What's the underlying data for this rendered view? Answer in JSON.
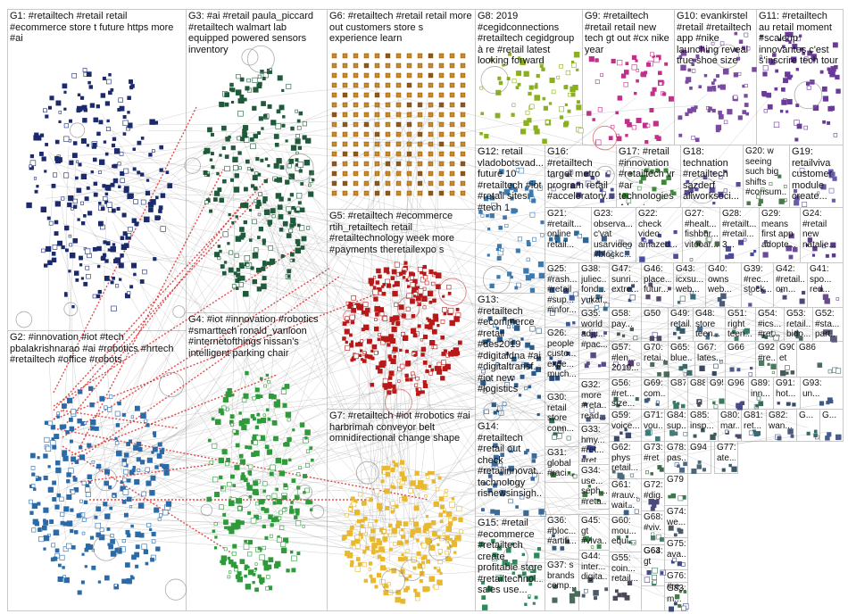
{
  "groups": [
    {
      "id": "G1",
      "label": "G1: #retailtech #retail retail #ecommerce store t future https more #ai",
      "color": "#1a2a6c"
    },
    {
      "id": "G2",
      "label": "G2: #innovation #iot #tech pbalakrishnarao #ai #robotics #hrtech #retailtech #office #robots",
      "color": "#2a6aa8"
    },
    {
      "id": "G3",
      "label": "G3: #ai #retail paula_piccard #retailtech walmart lab equipped powered sensors inventory",
      "color": "#1f5a3a"
    },
    {
      "id": "G4",
      "label": "G4: #iot #innovation #robotics #smarttech ronald_vanloon #internetofthings nissan's intelligent parking chair",
      "color": "#2e9a3a"
    },
    {
      "id": "G5",
      "label": "G5: #retailtech #ecommerce rtih_retailtech retail #retailtechnology week more #payments theretailexpo s",
      "color": "#b81818"
    },
    {
      "id": "G6",
      "label": "G6: #retailtech #retail retail more out customers store s experience learn",
      "color": "#c88a2a"
    },
    {
      "id": "G7",
      "label": "G7: #retailtech #iot #robotics #ai harbrimah conveyor belt omnidirectional change shape",
      "color": "#e8b830"
    },
    {
      "id": "G8",
      "label": "G8: 2019 #cegidconnections #retailtech cegidgroup à re #retail latest looking forward",
      "color": "#8ab020"
    },
    {
      "id": "G9",
      "label": "G9: #retailtech #retail retail new tech gt out #cx nike year",
      "color": "#c0308a"
    },
    {
      "id": "G10",
      "label": "G10: evankirstel #retail #retailtech app #nike launching reveal true shoe size",
      "color": "#7a4aa0"
    },
    {
      "id": "G11",
      "label": "G11: #retailtech au retail moment #scaleup innovantes c'est s'inscrire tech tour",
      "color": "#6a3a9a"
    },
    {
      "id": "G12",
      "label": "G12: retail vladobotsvad... future 10 #retailtech #iot #retail sites #tech 1",
      "color": "#3a7ab0"
    },
    {
      "id": "G13",
      "label": "G13: #retailtech #ecommerce #retail #des2019 #digitaldna #ai #digitaltransf... #iot new #logistics",
      "color": "#2a5a8a"
    },
    {
      "id": "G14",
      "label": "G14: #retailtech #retail out check #retailinnovat... technology risnewsinsigh...",
      "color": "#3a6a9a"
    },
    {
      "id": "G15",
      "label": "G15: #retail #ecommerce #retailtech create profitable store #retailtechnol... sales use...",
      "color": "#2a8a5a"
    },
    {
      "id": "G16",
      "label": "G16: #retailtech target metro program retail #acceleratorv...",
      "color": "#4a4a8a"
    },
    {
      "id": "G17",
      "label": "G17: #retail #innovation #retailtech vr #ar technologies 4 best...",
      "color": "#3a8a3a"
    },
    {
      "id": "G18",
      "label": "G18: technation #retailtech sazderf allworksoci...",
      "color": "#5a4a9a"
    },
    {
      "id": "G19",
      "label": "G19: retailviva customer module create...",
      "color": "#6a5aaa"
    },
    {
      "id": "G20",
      "label": "G20: w seeing such big shifts #consum...",
      "color": "#4a7a4a"
    },
    {
      "id": "G21",
      "label": "G21: #retailt... online retail...",
      "color": "#2a6a9a"
    },
    {
      "id": "G22",
      "label": "G22: check video amazed...",
      "color": "#4a4aa0"
    },
    {
      "id": "G23",
      "label": "G23: observa... c'vat usarvideo #blockc...",
      "color": "#3a5a8a"
    },
    {
      "id": "G24",
      "label": "G24: #retail new natalie...",
      "color": "#5a3a8a"
    },
    {
      "id": "G25",
      "label": "G25: #rash... #retail #sup... #infor...",
      "color": "#3a5a9a"
    },
    {
      "id": "G26",
      "label": "G26: people custo... expe... much...",
      "color": "#2a4a7a"
    },
    {
      "id": "G27",
      "label": "G27: #healt... fishbur... vitooar...",
      "color": "#4a6a4a"
    },
    {
      "id": "G28",
      "label": "G28: #retailt... #retail... 3...",
      "color": "#4a4a9a"
    },
    {
      "id": "G29",
      "label": "G29: means first app adopte...",
      "color": "#6a4a9a"
    },
    {
      "id": "G30",
      "label": "G30: retail store conn...",
      "color": "#2a6a5a"
    },
    {
      "id": "G31",
      "label": "G31: global #raci... appar... mark...",
      "color": "#3a6a3a"
    },
    {
      "id": "G32",
      "label": "G32: more #reta... read...",
      "color": "#4a5a8a"
    },
    {
      "id": "G33",
      "label": "G33: hmy... #ret... #ret...",
      "color": "#3a4a9a"
    },
    {
      "id": "G34",
      "label": "G34: use... seph... #reta...",
      "color": "#3a7a3a"
    },
    {
      "id": "G35",
      "label": "G35: world adju... #pac...",
      "color": "#5a4a8a"
    },
    {
      "id": "G36",
      "label": "G36: #bloc... #artifi...",
      "color": "#3a5a7a"
    },
    {
      "id": "G37",
      "label": "G37: s brands comp...",
      "color": "#4a6a5a"
    },
    {
      "id": "G38",
      "label": "G38: juliec... fond... yukaf...",
      "color": "#3a6a8a"
    },
    {
      "id": "G39",
      "label": "G39: #rec... stock...",
      "color": "#5a5a9a"
    },
    {
      "id": "G40",
      "label": "G40: owns web...",
      "color": "#4a5a7a"
    },
    {
      "id": "G41",
      "label": "G41: spo... red...",
      "color": "#6a4a8a"
    },
    {
      "id": "G42",
      "label": "G42: #retail... om...",
      "color": "#4a4a7a"
    },
    {
      "id": "G43",
      "label": "G43: icxsu... web...",
      "color": "#3a6a7a"
    },
    {
      "id": "G44",
      "label": "G44: inter... digita...",
      "color": "#4a5a6a"
    },
    {
      "id": "G45",
      "label": "G45: gt #viva...",
      "color": "#3a8a4a"
    },
    {
      "id": "G46",
      "label": "G46: place... futur...",
      "color": "#5a4a6a"
    },
    {
      "id": "G47",
      "label": "G47: sunri... extre...",
      "color": "#3a4a7a"
    },
    {
      "id": "G48",
      "label": "G48: store teen...",
      "color": "#4a6a8a"
    },
    {
      "id": "G49",
      "label": "G49: retail...",
      "color": "#3a5a6a"
    },
    {
      "id": "G50",
      "label": "G50",
      "color": "#4a4a6a"
    },
    {
      "id": "G51",
      "label": "G51: right teen...",
      "color": "#3a7a6a"
    },
    {
      "id": "G52",
      "label": "G52: #sta... part...",
      "color": "#5a5a7a"
    },
    {
      "id": "G53",
      "label": "G53: retail... bido...",
      "color": "#4a6a6a"
    },
    {
      "id": "G54",
      "label": "G54: #ics... #ret...",
      "color": "#3a5a5a"
    },
    {
      "id": "G55",
      "label": "G55: coin... retail...",
      "color": "#4a4a5a"
    },
    {
      "id": "G56",
      "label": "G56: #ret... size...",
      "color": "#3a6a5a"
    },
    {
      "id": "G57",
      "label": "G57: #len... 2019...",
      "color": "#5a3a7a"
    },
    {
      "id": "G58",
      "label": "G58: pay...",
      "color": "#4a5a5a"
    },
    {
      "id": "G59",
      "label": "G59: voice...",
      "color": "#3a4a6a"
    },
    {
      "id": "G60",
      "label": "G60: mou... equi...",
      "color": "#4a7a5a"
    },
    {
      "id": "G61",
      "label": "G61: #rauv... wait...",
      "color": "#3a5a8a"
    },
    {
      "id": "G62",
      "label": "G62: phys retail...",
      "color": "#4a6a7a"
    },
    {
      "id": "G63",
      "label": "G63: gt",
      "color": "#3a7a5a"
    },
    {
      "id": "G64",
      "label": "G64",
      "color": "#4a4a8a"
    },
    {
      "id": "G65",
      "label": "G65: blue...",
      "color": "#3a6a6a"
    },
    {
      "id": "G66",
      "label": "G66",
      "color": "#4a5a8a"
    },
    {
      "id": "G67",
      "label": "G67: lates...",
      "color": "#3a4a5a"
    },
    {
      "id": "G68",
      "label": "G68: #viv...",
      "color": "#4a7a6a"
    },
    {
      "id": "G69",
      "label": "G69: com...",
      "color": "#3a5a7a"
    },
    {
      "id": "G70",
      "label": "G70: retai...",
      "color": "#4a6a5a"
    },
    {
      "id": "G71",
      "label": "G71: vou...",
      "color": "#3a7a7a"
    },
    {
      "id": "G72",
      "label": "G72: #dig...",
      "color": "#4a4a7a"
    },
    {
      "id": "G73",
      "label": "G73: #ret",
      "color": "#3a6a4a"
    },
    {
      "id": "G74",
      "label": "G74: we...",
      "color": "#4a5a6a"
    },
    {
      "id": "G75",
      "label": "G75: ava...",
      "color": "#3a4a8a"
    },
    {
      "id": "G76",
      "label": "G76: #re...",
      "color": "#4a7a4a"
    },
    {
      "id": "G77",
      "label": "G77: ate...",
      "color": "#3a5a6a"
    },
    {
      "id": "G78",
      "label": "G78: pas...",
      "color": "#4a6a8a"
    },
    {
      "id": "G79",
      "label": "G79",
      "color": "#3a7a4a"
    },
    {
      "id": "G80",
      "label": "G80: mar...",
      "color": "#4a4a6a"
    },
    {
      "id": "G81",
      "label": "G81: ret...",
      "color": "#3a6a7a"
    },
    {
      "id": "G82",
      "label": "G82: wan...",
      "color": "#4a5a7a"
    },
    {
      "id": "G83",
      "label": "G83: m...",
      "color": "#3a4a7a"
    },
    {
      "id": "G84",
      "label": "G84: sup...",
      "color": "#4a7a7a"
    },
    {
      "id": "G85",
      "label": "G85: insp...",
      "color": "#3a5a5a"
    },
    {
      "id": "G86",
      "label": "G86",
      "color": "#4a6a6a"
    },
    {
      "id": "G87",
      "label": "G87",
      "color": "#3a7a6a"
    },
    {
      "id": "G88",
      "label": "G88",
      "color": "#4a4a5a"
    },
    {
      "id": "G89",
      "label": "G89: inn...",
      "color": "#3a6a5a"
    },
    {
      "id": "G90",
      "label": "G90: et",
      "color": "#4a5a5a"
    },
    {
      "id": "G91",
      "label": "G91: hot...",
      "color": "#3a4a6a"
    },
    {
      "id": "G92",
      "label": "G92: #re...",
      "color": "#4a7a5a"
    },
    {
      "id": "G93",
      "label": "G93: un...",
      "color": "#3a5a8a"
    },
    {
      "id": "G94",
      "label": "G94",
      "color": "#4a6a7a"
    },
    {
      "id": "G95",
      "label": "G95",
      "color": "#3a7a5a"
    },
    {
      "id": "G96",
      "label": "G96",
      "color": "#4a4a8a"
    },
    {
      "id": "G97",
      "label": "G...",
      "color": "#3a6a6a"
    },
    {
      "id": "G98",
      "label": "G...",
      "color": "#4a5a8a"
    }
  ]
}
